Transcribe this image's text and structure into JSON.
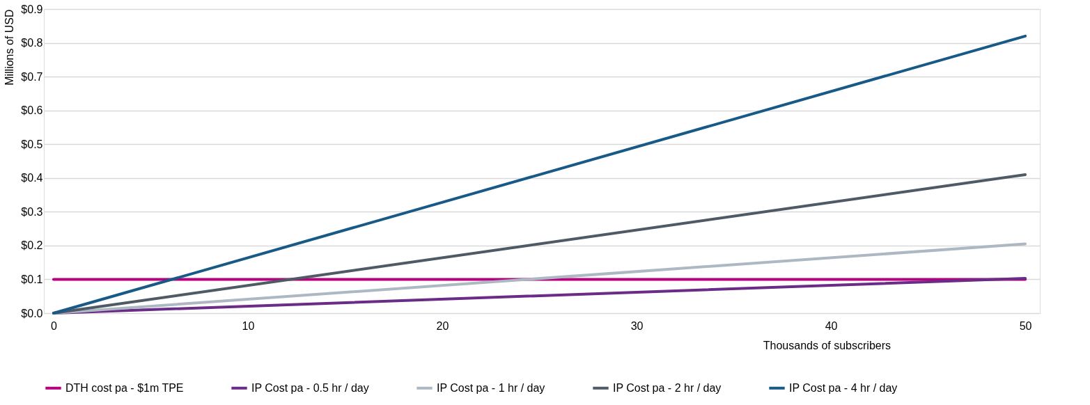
{
  "chart_data": {
    "type": "line",
    "xlabel": "Thousands of subscribers",
    "ylabel": "Millions of USD",
    "x": [
      0,
      50
    ],
    "series": [
      {
        "name": "DTH cost pa - $1m TPE",
        "color": "#b5007f",
        "values": [
          0.1,
          0.1
        ]
      },
      {
        "name": "IP Cost pa - 0.5 hr / day",
        "color": "#6b2c87",
        "values": [
          0,
          0.103
        ]
      },
      {
        "name": "IP Cost pa - 1 hr / day",
        "color": "#adb8c3",
        "values": [
          0,
          0.205
        ]
      },
      {
        "name": "IP Cost pa - 2 hr / day",
        "color": "#4f5a65",
        "values": [
          0,
          0.41
        ]
      },
      {
        "name": "IP Cost pa - 4 hr / day",
        "color": "#175a87",
        "values": [
          0,
          0.82
        ]
      }
    ],
    "xlim": [
      -0.5,
      50.75
    ],
    "xticks": [
      0,
      10,
      20,
      30,
      40,
      50
    ],
    "ylim": [
      0,
      0.9
    ],
    "yticks": [
      {
        "value": 0,
        "label": "$0.0"
      },
      {
        "value": 0.1,
        "label": "$0.1"
      },
      {
        "value": 0.2,
        "label": "$0.2"
      },
      {
        "value": 0.3,
        "label": "$0.3"
      },
      {
        "value": 0.4,
        "label": "$0.4"
      },
      {
        "value": 0.5,
        "label": "$0.5"
      },
      {
        "value": 0.6,
        "label": "$0.6"
      },
      {
        "value": 0.7,
        "label": "$0.7"
      },
      {
        "value": 0.8,
        "label": "$0.8"
      },
      {
        "value": 0.9,
        "label": "$0.9"
      }
    ],
    "grid": "y",
    "legend": "bottom",
    "marker": "none",
    "line_style": "solid"
  }
}
